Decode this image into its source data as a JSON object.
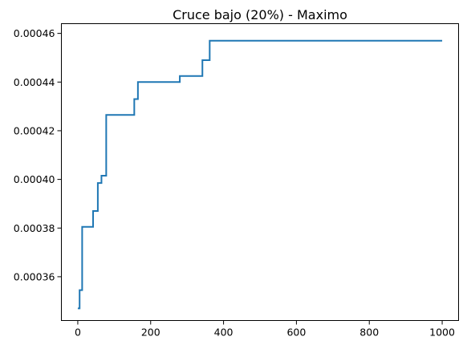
{
  "chart_data": {
    "type": "line",
    "title": "Cruce bajo (20%) - Maximo",
    "xlabel": "",
    "ylabel": "",
    "xlim": [
      -45,
      1045
    ],
    "ylim": [
      0.000342,
      0.000464
    ],
    "x_ticks": [
      0,
      200,
      400,
      600,
      800,
      1000
    ],
    "x_tick_labels": [
      "0",
      "200",
      "400",
      "600",
      "800",
      "1000"
    ],
    "y_ticks": [
      0.00036,
      0.00038,
      0.0004,
      0.00042,
      0.00044,
      0.00046
    ],
    "y_tick_labels": [
      "0.00036",
      "0.00038",
      "0.00040",
      "0.00042",
      "0.00044",
      "0.00046"
    ],
    "grid": false,
    "legend": "none",
    "series": [
      {
        "color": "#1f77b4",
        "step": "post",
        "points": [
          [
            0,
            0.000347
          ],
          [
            5,
            0.0003545
          ],
          [
            12,
            0.0003805
          ],
          [
            42,
            0.000387
          ],
          [
            55,
            0.0003985
          ],
          [
            65,
            0.0004015
          ],
          [
            78,
            0.0004265
          ],
          [
            155,
            0.000433
          ],
          [
            165,
            0.00044
          ],
          [
            280,
            0.0004425
          ],
          [
            342,
            0.000449
          ],
          [
            362,
            0.000457
          ],
          [
            1000,
            0.000457
          ]
        ]
      }
    ]
  }
}
